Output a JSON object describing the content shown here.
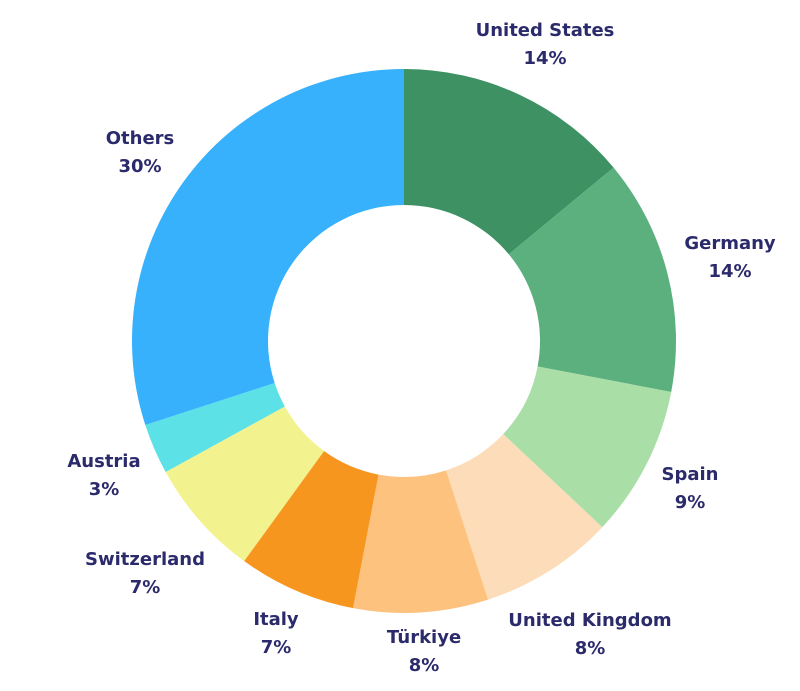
{
  "chart_data": {
    "type": "pie",
    "subtype": "donut",
    "slices": [
      {
        "label": "United States",
        "value": 14,
        "value_label": "14%",
        "color": "#3d9163"
      },
      {
        "label": "Germany",
        "value": 14,
        "value_label": "14%",
        "color": "#5cb07e"
      },
      {
        "label": "Spain",
        "value": 9,
        "value_label": "9%",
        "color": "#a9dea6"
      },
      {
        "label": "United Kingdom",
        "value": 8,
        "value_label": "8%",
        "color": "#fddcb9"
      },
      {
        "label": "Türkiye",
        "value": 8,
        "value_label": "8%",
        "color": "#fdc27d"
      },
      {
        "label": "Italy",
        "value": 7,
        "value_label": "7%",
        "color": "#f6961f"
      },
      {
        "label": "Switzerland",
        "value": 7,
        "value_label": "7%",
        "color": "#f2f28e"
      },
      {
        "label": "Austria",
        "value": 3,
        "value_label": "3%",
        "color": "#5ce1e6"
      },
      {
        "label": "Others",
        "value": 30,
        "value_label": "30%",
        "color": "#38b1fc"
      }
    ],
    "label_color": "#2b2a6b",
    "legend": "none"
  }
}
